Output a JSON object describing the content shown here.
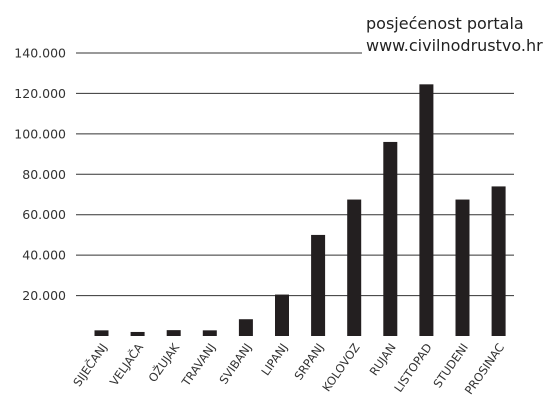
{
  "chart_data": {
    "type": "bar",
    "title_lines": [
      "posjećenost portala",
      "www.civilnodrustvo.hr"
    ],
    "xlabel": "",
    "ylabel": "",
    "categories": [
      "SIJEČANJ",
      "VELJAČA",
      "OŽUJAK",
      "TRAVANJ",
      "SVIBANJ",
      "LIPANJ",
      "SRPANJ",
      "KOLOVOZ",
      "RUJAN",
      "LISTOPAD",
      "STUDENI",
      "PROSINAC"
    ],
    "values": [
      2800,
      2000,
      2900,
      2800,
      8300,
      20500,
      50000,
      67500,
      96000,
      124500,
      67500,
      74000
    ],
    "yticks": [
      "20.000",
      "40.000",
      "60.000",
      "80.000",
      "100.000",
      "120.000",
      "140.000"
    ],
    "ytick_values": [
      20000,
      40000,
      60000,
      80000,
      100000,
      120000,
      140000
    ],
    "ylim": [
      0,
      140000
    ],
    "grid": true,
    "bar_color": "#231f20"
  }
}
